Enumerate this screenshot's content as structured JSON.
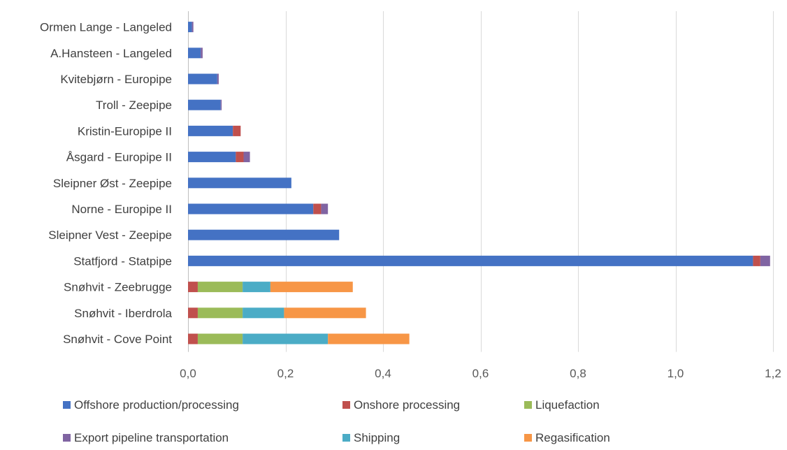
{
  "chart_data": {
    "type": "bar",
    "orientation": "horizontal",
    "stacked": true,
    "title": "",
    "xlabel": "",
    "ylabel": "",
    "xlim": [
      0,
      1.2
    ],
    "x_ticks": [
      "0,0",
      "0,2",
      "0,4",
      "0,6",
      "0,8",
      "1,0",
      "1,2"
    ],
    "x_tick_values": [
      0,
      0.2,
      0.4,
      0.6,
      0.8,
      1.0,
      1.2
    ],
    "grid": "vertical",
    "legend_position": "bottom",
    "categories": [
      "Ormen Lange - Langeled",
      "A.Hansteen  - Langeled",
      "Kvitebjørn - Europipe",
      "Troll - Zeepipe",
      "Kristin-Europipe II",
      "Åsgard - Europipe II",
      "Sleipner Øst - Zeepipe",
      "Norne - Europipe II",
      "Sleipner Vest - Zeepipe",
      "Statfjord - Statpipe",
      "Snøhvit - Zeebrugge",
      "Snøhvit - Iberdrola",
      "Snøhvit - Cove Point"
    ],
    "series": [
      {
        "name": "Offshore production/processing",
        "color": "#4472C4",
        "values": [
          0.008,
          0.026,
          0.06,
          0.067,
          0.092,
          0.098,
          0.212,
          0.257,
          0.31,
          1.159,
          0,
          0,
          0
        ]
      },
      {
        "name": "Onshore processing",
        "color": "#C0504D",
        "values": [
          0,
          0,
          0,
          0,
          0.016,
          0.016,
          0,
          0.016,
          0,
          0.015,
          0.02,
          0.02,
          0.02
        ]
      },
      {
        "name": "Liquefaction",
        "color": "#9BBB59",
        "values": [
          0,
          0,
          0,
          0,
          0,
          0,
          0,
          0,
          0,
          0,
          0.092,
          0.092,
          0.092
        ]
      },
      {
        "name": "Export pipeline transportation",
        "color": "#8064A2",
        "values": [
          0.003,
          0.004,
          0.003,
          0.002,
          0,
          0.013,
          0,
          0.014,
          0,
          0.02,
          0,
          0,
          0
        ]
      },
      {
        "name": "Shipping",
        "color": "#4BACC6",
        "values": [
          0,
          0,
          0,
          0,
          0,
          0,
          0,
          0,
          0,
          0,
          0.057,
          0.085,
          0.175
        ]
      },
      {
        "name": "Regasification",
        "color": "#F79646",
        "values": [
          0,
          0,
          0,
          0,
          0,
          0,
          0,
          0,
          0,
          0,
          0.169,
          0.168,
          0.167
        ]
      }
    ]
  }
}
